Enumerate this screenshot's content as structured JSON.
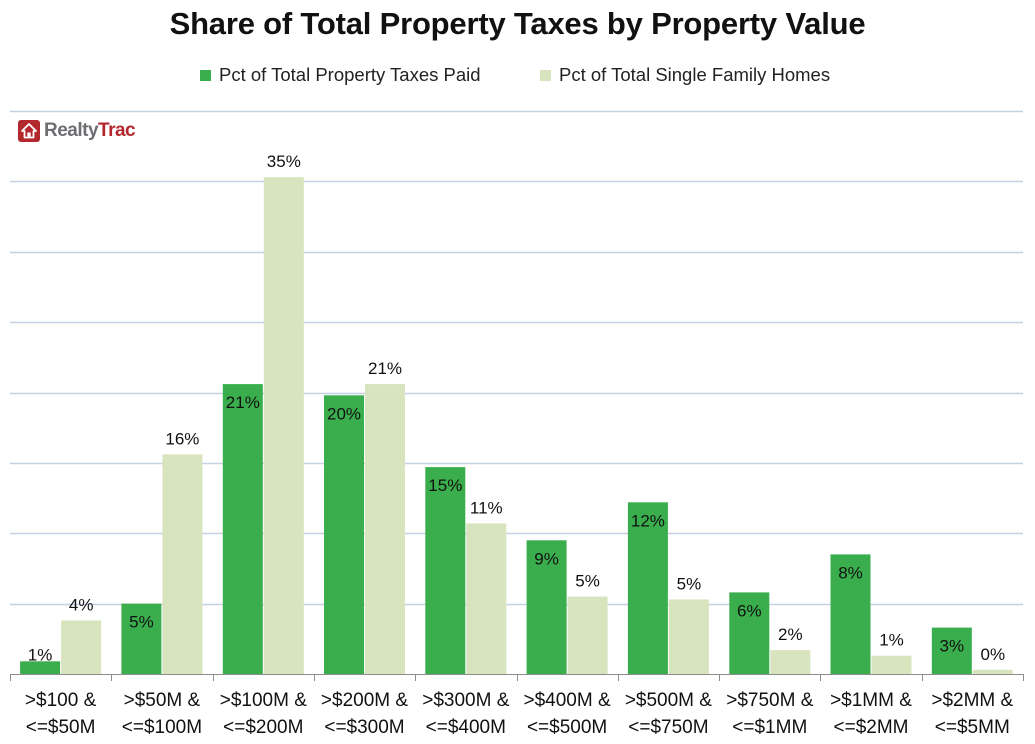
{
  "chart_data": {
    "type": "bar",
    "title": "Share of Total Property Taxes by Property Value",
    "xlabel": "",
    "ylabel": "",
    "ylim": [
      0,
      40
    ],
    "grid": true,
    "gridline_step": 5,
    "legend_position": "top",
    "categories": [
      [
        ">$100 &",
        "<=$50M"
      ],
      [
        ">$50M &",
        "<=$100M"
      ],
      [
        ">$100M &",
        "<=$200M"
      ],
      [
        ">$200M &",
        "<=$300M"
      ],
      [
        ">$300M &",
        "<=$400M"
      ],
      [
        ">$400M &",
        "<=$500M"
      ],
      [
        ">$500M &",
        "<=$750M"
      ],
      [
        ">$750M &",
        "<=$1MM"
      ],
      [
        ">$1MM &",
        "<=$2MM"
      ],
      [
        ">$2MM &",
        "<=$5MM"
      ]
    ],
    "series": [
      {
        "name": "Pct of Total Property Taxes Paid",
        "color": "#3aae4d",
        "values": [
          0.9,
          5.0,
          20.6,
          19.8,
          14.7,
          9.5,
          12.2,
          5.8,
          8.5,
          3.3
        ],
        "labels": [
          "1%",
          "5%",
          "21%",
          "20%",
          "15%",
          "9%",
          "12%",
          "6%",
          "8%",
          "3%"
        ],
        "label_position": "inside-top"
      },
      {
        "name": "Pct of Total Single Family Homes",
        "color": "#d7e4bd",
        "values": [
          3.8,
          15.6,
          35.3,
          20.6,
          10.7,
          5.5,
          5.3,
          1.7,
          1.3,
          0.3
        ],
        "labels": [
          "4%",
          "16%",
          "35%",
          "21%",
          "11%",
          "5%",
          "5%",
          "2%",
          "1%",
          "0%"
        ],
        "label_position": "outside-top"
      }
    ]
  },
  "logo": {
    "name_part1": "Realty",
    "name_part2": "Trac",
    "icon": "house-icon"
  },
  "colors": {
    "gridline": "#c5d0e4",
    "axis": "#8c8c8c",
    "brand_red": "#b3282d"
  }
}
